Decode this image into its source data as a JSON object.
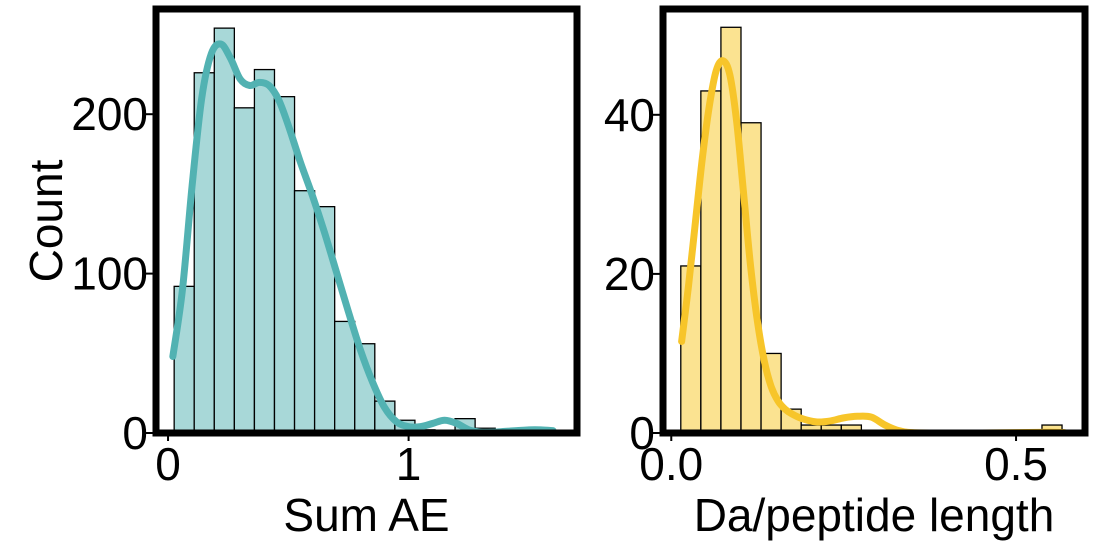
{
  "chart_data": [
    {
      "type": "bar",
      "subtype": "histogram-with-kde",
      "xlabel": "Sum AE",
      "ylabel": "Count",
      "xlim": [
        -0.05,
        1.7
      ],
      "ylim": [
        0,
        266
      ],
      "xticks": [
        0,
        1
      ],
      "xtick_labels": [
        "0",
        "1"
      ],
      "yticks": [
        0,
        100,
        200
      ],
      "ytick_labels": [
        "0",
        "100",
        "200"
      ],
      "bar_color": "#a8d8d8",
      "kde_color": "#52b2b2",
      "bin_start": 0.0255,
      "bin_width": 0.0834,
      "counts": [
        92,
        226,
        254,
        204,
        228,
        211,
        152,
        142,
        70,
        56,
        20,
        8,
        2,
        0,
        9,
        3,
        2,
        2,
        2
      ],
      "kde": {
        "x": [
          0.02,
          0.06,
          0.1,
          0.14,
          0.18,
          0.22,
          0.26,
          0.3,
          0.34,
          0.38,
          0.42,
          0.46,
          0.5,
          0.55,
          0.6,
          0.65,
          0.7,
          0.75,
          0.8,
          0.85,
          0.9,
          0.95,
          1.0,
          1.05,
          1.1,
          1.15,
          1.2,
          1.25,
          1.3,
          1.35,
          1.4,
          1.45,
          1.5,
          1.55,
          1.6
        ],
        "y": [
          48,
          90,
          155,
          210,
          238,
          244,
          235,
          222,
          218,
          220,
          218,
          209,
          193,
          170,
          149,
          126,
          101,
          76,
          52,
          32,
          16,
          7,
          4,
          4,
          6,
          8,
          6,
          2,
          0.5,
          0.5,
          1,
          1.5,
          2,
          2,
          1.5
        ]
      }
    },
    {
      "type": "bar",
      "subtype": "histogram-with-kde",
      "xlabel": "Da/peptide length",
      "ylabel": "",
      "xlim": [
        -0.012,
        0.6
      ],
      "ylim": [
        0,
        53.3
      ],
      "xticks": [
        0,
        0.5
      ],
      "xtick_labels": [
        "0.0",
        "0.5"
      ],
      "yticks": [
        0,
        20,
        40
      ],
      "ytick_labels": [
        "0",
        "20",
        "40"
      ],
      "bar_color": "#fbe391",
      "kde_color": "#f7c52a",
      "bin_start": 0.0138,
      "bin_width": 0.0291,
      "counts": [
        21,
        43,
        51,
        39,
        10,
        3,
        1,
        1,
        1,
        0,
        0,
        0,
        0,
        0,
        0,
        0,
        0,
        0,
        1
      ],
      "kde": {
        "x": [
          0.015,
          0.025,
          0.035,
          0.045,
          0.055,
          0.065,
          0.075,
          0.085,
          0.095,
          0.105,
          0.115,
          0.125,
          0.135,
          0.145,
          0.155,
          0.165,
          0.175,
          0.19,
          0.21,
          0.23,
          0.25,
          0.27,
          0.29,
          0.31,
          0.33,
          0.35,
          0.4,
          0.45,
          0.5,
          0.55,
          0.57
        ],
        "y": [
          11.5,
          18.5,
          26.5,
          34.5,
          41,
          45.5,
          46.8,
          45,
          39,
          30,
          21,
          14,
          9,
          5.8,
          4,
          3,
          2.4,
          1.8,
          1.4,
          1.5,
          1.9,
          2.1,
          2,
          1,
          0.3,
          0.05,
          0,
          0,
          0.05,
          0.1,
          0.05
        ]
      }
    }
  ]
}
